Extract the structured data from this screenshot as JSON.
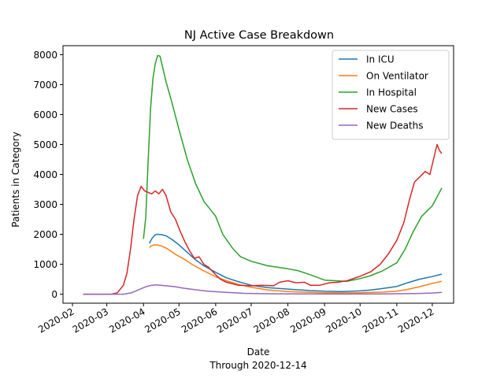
{
  "chart_data": {
    "type": "line",
    "title": "NJ Active Case Breakdown",
    "xlabel": "Date",
    "xlabel_sub": "Through 2020-12-14",
    "ylabel": "Patients in Category",
    "ylim": [
      -300,
      8300
    ],
    "xlim": [
      "2020-01-24",
      "2020-12-19"
    ],
    "yticks": [
      0,
      1000,
      2000,
      3000,
      4000,
      5000,
      6000,
      7000,
      8000
    ],
    "ytick_labels": [
      "0",
      "1000",
      "2000",
      "3000",
      "4000",
      "5000",
      "6000",
      "7000",
      "8000"
    ],
    "xticks": [
      "2020-02-01",
      "2020-03-01",
      "2020-04-01",
      "2020-05-01",
      "2020-06-01",
      "2020-07-01",
      "2020-08-01",
      "2020-09-01",
      "2020-10-01",
      "2020-11-01",
      "2020-12-01"
    ],
    "xtick_labels": [
      "2020-02",
      "2020-03",
      "2020-04",
      "2020-05",
      "2020-06",
      "2020-07",
      "2020-08",
      "2020-09",
      "2020-10",
      "2020-11",
      "2020-12"
    ],
    "grid": false,
    "legend_position": "top-right",
    "series": [
      {
        "name": "In ICU",
        "color": "#1f77b4",
        "points": [
          [
            "2020-04-06",
            1700
          ],
          [
            "2020-04-08",
            1850
          ],
          [
            "2020-04-10",
            1950
          ],
          [
            "2020-04-12",
            2000
          ],
          [
            "2020-04-16",
            1990
          ],
          [
            "2020-04-20",
            1950
          ],
          [
            "2020-04-25",
            1830
          ],
          [
            "2020-05-01",
            1650
          ],
          [
            "2020-05-08",
            1400
          ],
          [
            "2020-05-15",
            1150
          ],
          [
            "2020-05-22",
            950
          ],
          [
            "2020-06-01",
            730
          ],
          [
            "2020-06-10",
            550
          ],
          [
            "2020-06-20",
            420
          ],
          [
            "2020-07-01",
            300
          ],
          [
            "2020-07-15",
            220
          ],
          [
            "2020-08-01",
            170
          ],
          [
            "2020-08-20",
            120
          ],
          [
            "2020-09-01",
            100
          ],
          [
            "2020-09-15",
            90
          ],
          [
            "2020-10-01",
            110
          ],
          [
            "2020-10-10",
            140
          ],
          [
            "2020-10-20",
            190
          ],
          [
            "2020-11-01",
            260
          ],
          [
            "2020-11-10",
            380
          ],
          [
            "2020-11-20",
            500
          ],
          [
            "2020-12-01",
            590
          ],
          [
            "2020-12-09",
            670
          ]
        ]
      },
      {
        "name": "On Ventilator",
        "color": "#ff7f0e",
        "points": [
          [
            "2020-04-06",
            1560
          ],
          [
            "2020-04-08",
            1620
          ],
          [
            "2020-04-10",
            1650
          ],
          [
            "2020-04-13",
            1640
          ],
          [
            "2020-04-17",
            1600
          ],
          [
            "2020-04-22",
            1500
          ],
          [
            "2020-04-28",
            1330
          ],
          [
            "2020-05-05",
            1180
          ],
          [
            "2020-05-12",
            1000
          ],
          [
            "2020-05-20",
            820
          ],
          [
            "2020-06-01",
            580
          ],
          [
            "2020-06-10",
            450
          ],
          [
            "2020-06-20",
            330
          ],
          [
            "2020-07-01",
            230
          ],
          [
            "2020-07-15",
            140
          ],
          [
            "2020-08-01",
            90
          ],
          [
            "2020-08-20",
            60
          ],
          [
            "2020-09-01",
            50
          ],
          [
            "2020-09-20",
            45
          ],
          [
            "2020-10-01",
            50
          ],
          [
            "2020-10-20",
            70
          ],
          [
            "2020-11-01",
            100
          ],
          [
            "2020-11-10",
            160
          ],
          [
            "2020-11-20",
            250
          ],
          [
            "2020-12-01",
            360
          ],
          [
            "2020-12-09",
            430
          ]
        ]
      },
      {
        "name": "In Hospital",
        "color": "#2ca02c",
        "points": [
          [
            "2020-04-01",
            1850
          ],
          [
            "2020-04-03",
            2600
          ],
          [
            "2020-04-05",
            4500
          ],
          [
            "2020-04-07",
            6200
          ],
          [
            "2020-04-09",
            7200
          ],
          [
            "2020-04-11",
            7700
          ],
          [
            "2020-04-13",
            7970
          ],
          [
            "2020-04-15",
            7950
          ],
          [
            "2020-04-17",
            7600
          ],
          [
            "2020-04-20",
            7100
          ],
          [
            "2020-04-25",
            6400
          ],
          [
            "2020-05-01",
            5500
          ],
          [
            "2020-05-08",
            4500
          ],
          [
            "2020-05-15",
            3700
          ],
          [
            "2020-05-22",
            3100
          ],
          [
            "2020-06-01",
            2600
          ],
          [
            "2020-06-07",
            2000
          ],
          [
            "2020-06-15",
            1550
          ],
          [
            "2020-06-22",
            1250
          ],
          [
            "2020-07-01",
            1100
          ],
          [
            "2020-07-15",
            950
          ],
          [
            "2020-08-01",
            850
          ],
          [
            "2020-08-10",
            780
          ],
          [
            "2020-08-20",
            650
          ],
          [
            "2020-09-01",
            470
          ],
          [
            "2020-09-10",
            450
          ],
          [
            "2020-09-20",
            430
          ],
          [
            "2020-10-01",
            520
          ],
          [
            "2020-10-10",
            620
          ],
          [
            "2020-10-20",
            780
          ],
          [
            "2020-11-01",
            1050
          ],
          [
            "2020-11-08",
            1500
          ],
          [
            "2020-11-15",
            2100
          ],
          [
            "2020-11-22",
            2600
          ],
          [
            "2020-12-01",
            2950
          ],
          [
            "2020-12-05",
            3250
          ],
          [
            "2020-12-09",
            3550
          ]
        ]
      },
      {
        "name": "New Cases",
        "color": "#d62728",
        "points": [
          [
            "2020-02-10",
            0
          ],
          [
            "2020-03-05",
            0
          ],
          [
            "2020-03-10",
            50
          ],
          [
            "2020-03-15",
            300
          ],
          [
            "2020-03-18",
            700
          ],
          [
            "2020-03-21",
            1500
          ],
          [
            "2020-03-24",
            2500
          ],
          [
            "2020-03-27",
            3300
          ],
          [
            "2020-03-30",
            3600
          ],
          [
            "2020-04-02",
            3450
          ],
          [
            "2020-04-05",
            3400
          ],
          [
            "2020-04-08",
            3350
          ],
          [
            "2020-04-11",
            3450
          ],
          [
            "2020-04-14",
            3350
          ],
          [
            "2020-04-17",
            3500
          ],
          [
            "2020-04-20",
            3300
          ],
          [
            "2020-04-24",
            2750
          ],
          [
            "2020-04-28",
            2500
          ],
          [
            "2020-05-02",
            2100
          ],
          [
            "2020-05-06",
            1750
          ],
          [
            "2020-05-10",
            1450
          ],
          [
            "2020-05-14",
            1200
          ],
          [
            "2020-05-18",
            1250
          ],
          [
            "2020-05-22",
            1000
          ],
          [
            "2020-05-26",
            900
          ],
          [
            "2020-06-01",
            650
          ],
          [
            "2020-06-05",
            500
          ],
          [
            "2020-06-10",
            400
          ],
          [
            "2020-06-20",
            300
          ],
          [
            "2020-07-01",
            280
          ],
          [
            "2020-07-10",
            300
          ],
          [
            "2020-07-20",
            280
          ],
          [
            "2020-07-25",
            400
          ],
          [
            "2020-08-01",
            450
          ],
          [
            "2020-08-08",
            380
          ],
          [
            "2020-08-15",
            400
          ],
          [
            "2020-08-20",
            300
          ],
          [
            "2020-08-28",
            300
          ],
          [
            "2020-09-05",
            380
          ],
          [
            "2020-09-12",
            400
          ],
          [
            "2020-09-20",
            450
          ],
          [
            "2020-10-01",
            600
          ],
          [
            "2020-10-10",
            750
          ],
          [
            "2020-10-18",
            1000
          ],
          [
            "2020-10-25",
            1350
          ],
          [
            "2020-11-01",
            1800
          ],
          [
            "2020-11-07",
            2400
          ],
          [
            "2020-11-12",
            3200
          ],
          [
            "2020-11-16",
            3750
          ],
          [
            "2020-11-20",
            3900
          ],
          [
            "2020-11-25",
            4100
          ],
          [
            "2020-11-29",
            4000
          ],
          [
            "2020-12-02",
            4500
          ],
          [
            "2020-12-05",
            5000
          ],
          [
            "2020-12-07",
            4800
          ],
          [
            "2020-12-09",
            4700
          ]
        ]
      },
      {
        "name": "New Deaths",
        "color": "#9467bd",
        "points": [
          [
            "2020-02-10",
            0
          ],
          [
            "2020-03-15",
            0
          ],
          [
            "2020-03-22",
            50
          ],
          [
            "2020-03-28",
            150
          ],
          [
            "2020-04-03",
            250
          ],
          [
            "2020-04-08",
            300
          ],
          [
            "2020-04-12",
            310
          ],
          [
            "2020-04-20",
            280
          ],
          [
            "2020-04-28",
            250
          ],
          [
            "2020-05-05",
            200
          ],
          [
            "2020-05-15",
            150
          ],
          [
            "2020-05-25",
            100
          ],
          [
            "2020-06-10",
            60
          ],
          [
            "2020-06-25",
            30
          ],
          [
            "2020-07-15",
            15
          ],
          [
            "2020-08-15",
            8
          ],
          [
            "2020-09-15",
            5
          ],
          [
            "2020-10-15",
            10
          ],
          [
            "2020-11-01",
            15
          ],
          [
            "2020-11-20",
            25
          ],
          [
            "2020-12-01",
            40
          ],
          [
            "2020-12-09",
            60
          ]
        ]
      }
    ]
  }
}
